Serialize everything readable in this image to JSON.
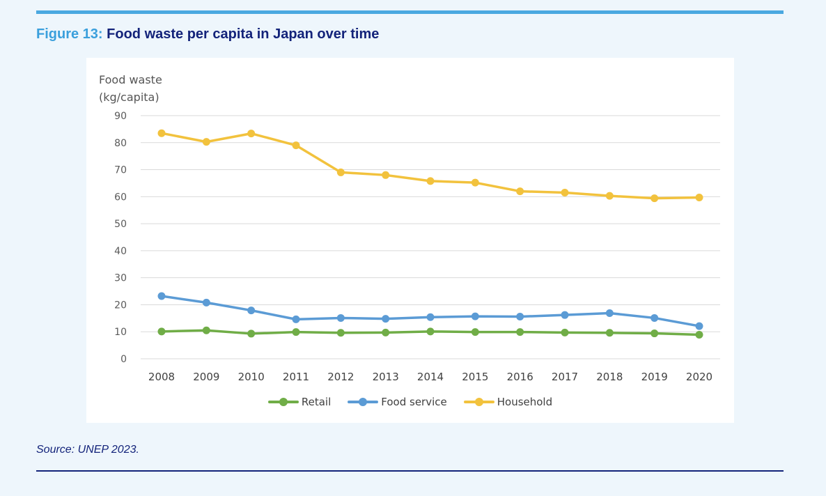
{
  "figure": {
    "label": "Figure 13:",
    "title": "Food waste per capita in Japan over time"
  },
  "source": "Source: UNEP 2023.",
  "colors": {
    "accent": "#4aa8e0",
    "title": "#13237a",
    "retail": "#70ad47",
    "food_service": "#5b9bd5",
    "household": "#f2c23d"
  },
  "chart_data": {
    "type": "line",
    "title": "",
    "ylabel_line1": "Food waste",
    "ylabel_line2": "(kg/capita)",
    "xlabel": "",
    "ylim": [
      0,
      90
    ],
    "yticks": [
      0,
      10,
      20,
      30,
      40,
      50,
      60,
      70,
      80,
      90
    ],
    "categories": [
      "2008",
      "2009",
      "2010",
      "2011",
      "2012",
      "2013",
      "2014",
      "2015",
      "2016",
      "2017",
      "2018",
      "2019",
      "2020"
    ],
    "grid": true,
    "legend_position": "bottom",
    "series": [
      {
        "name": "Retail",
        "color": "#70ad47",
        "values": [
          10.1,
          10.5,
          9.3,
          9.9,
          9.6,
          9.7,
          10.1,
          9.9,
          9.9,
          9.7,
          9.6,
          9.4,
          8.9
        ]
      },
      {
        "name": "Food service",
        "color": "#5b9bd5",
        "values": [
          23.2,
          20.8,
          17.9,
          14.6,
          15.1,
          14.8,
          15.4,
          15.7,
          15.6,
          16.2,
          16.9,
          15.1,
          12.1
        ]
      },
      {
        "name": "Household",
        "color": "#f2c23d",
        "values": [
          83.5,
          80.3,
          83.4,
          79.0,
          69.0,
          68.0,
          65.8,
          65.2,
          62.0,
          61.5,
          60.3,
          59.4,
          59.7
        ]
      }
    ]
  }
}
